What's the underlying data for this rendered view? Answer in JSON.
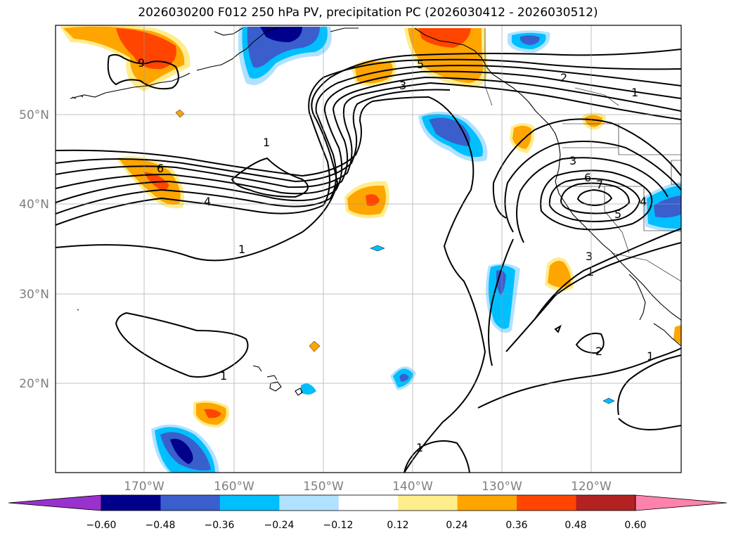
{
  "title": "2026030200 F012 250 hPa PV, precipitation PC (2026030412 - 2026030512)",
  "map": {
    "lon_ticks": [
      "170°W",
      "160°W",
      "150°W",
      "140°W",
      "130°W",
      "120°W"
    ],
    "lat_ticks": [
      "50°N",
      "40°N",
      "30°N",
      "20°N"
    ],
    "grid": true,
    "contour_labels": [
      "9",
      "5",
      "2",
      "1",
      "3",
      "1",
      "6",
      "4",
      "3",
      "6",
      "7",
      "5",
      "4",
      "1",
      "3",
      "1",
      "2",
      "1",
      "1",
      "1"
    ]
  },
  "colorbar": {
    "tick_labels": [
      "−0.60",
      "−0.48",
      "−0.36",
      "−0.24",
      "−0.12",
      "0.12",
      "0.24",
      "0.36",
      "0.48",
      "0.60"
    ],
    "colors": [
      "#9932cc",
      "#00008b",
      "#3a5fcd",
      "#00bfff",
      "#b0e2ff",
      "#ffffff",
      "#ffec8b",
      "#ffa500",
      "#ff4500",
      "#b22222",
      "#ff82ab"
    ]
  }
}
